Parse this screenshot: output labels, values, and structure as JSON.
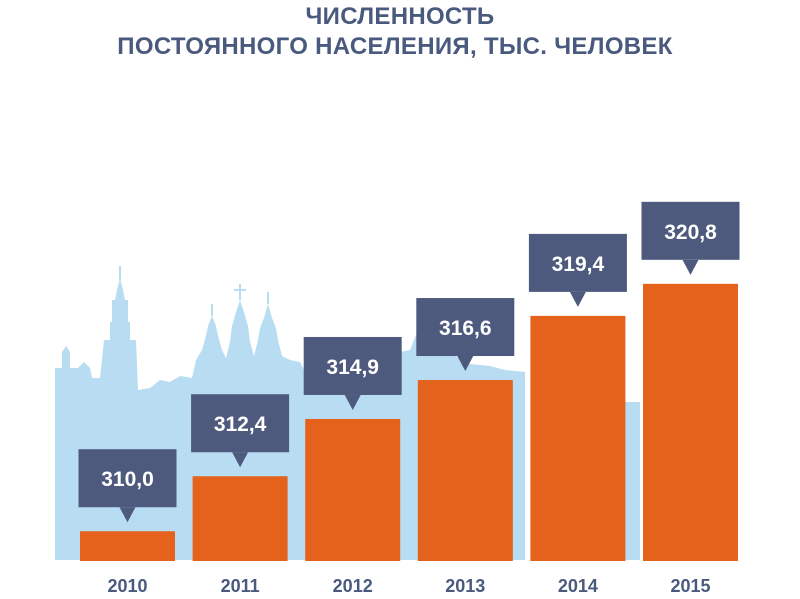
{
  "chart_data": {
    "type": "bar",
    "title_line1": "ЧИСЛЕННОСТЬ",
    "title_line2": "ПОСТОЯННОГО НАСЕЛЕНИЯ, ТЫС. ЧЕЛОВЕК",
    "categories": [
      "2010",
      "2011",
      "2012",
      "2013",
      "2014",
      "2015"
    ],
    "values": [
      310.0,
      312.4,
      314.9,
      316.6,
      319.4,
      320.8
    ],
    "value_labels": [
      "310,0",
      "312,4",
      "314,9",
      "316,6",
      "319,4",
      "320,8"
    ],
    "ylim": [
      308.7,
      322.8
    ],
    "grid": false,
    "colors": {
      "bar": "#e5621c",
      "label_box": "#4e5a7d",
      "skyline": "#b8dcf2",
      "text": "#4a5a7e"
    }
  }
}
